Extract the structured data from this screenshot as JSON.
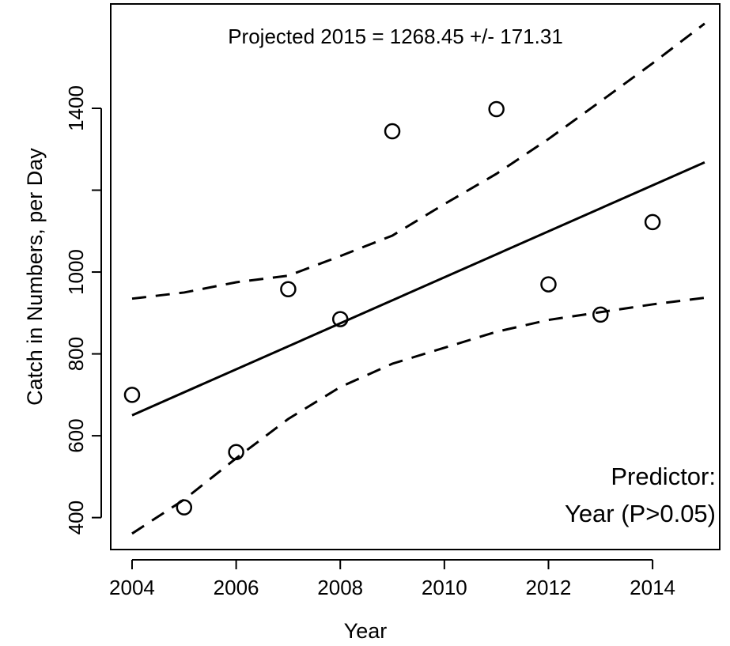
{
  "chart_data": {
    "type": "scatter",
    "annotation": "Projected 2015 =  1268.45 +/- 171.31",
    "note_lines": [
      "Predictor:",
      "Year (P>0.05)"
    ],
    "note_color": "#2e5f96",
    "xlabel": "Year",
    "ylabel": "Catch in Numbers, per Day",
    "xlim": [
      2003.59,
      2015.29
    ],
    "ylim": [
      322,
      1655
    ],
    "xticks": [
      2004,
      2006,
      2008,
      2010,
      2012,
      2014
    ],
    "yticks": [
      400,
      600,
      800,
      1000,
      1200,
      1400
    ],
    "ytick_labels_shown": [
      true,
      true,
      true,
      true,
      false,
      true
    ],
    "series": [
      {
        "style": "points",
        "color": "#000000",
        "x": [
          2004,
          2005,
          2006,
          2007,
          2008,
          2009,
          2011,
          2012,
          2013,
          2014
        ],
        "values": [
          700,
          425,
          560,
          958,
          885,
          1344,
          1398,
          970,
          896,
          1122
        ]
      },
      {
        "style": "solid",
        "color": "#000000",
        "x": [
          2004,
          2015
        ],
        "values": [
          650,
          1268
        ]
      },
      {
        "style": "dashed",
        "color": "#000000",
        "x": [
          2004,
          2005,
          2006,
          2007,
          2008,
          2009,
          2010,
          2011,
          2012,
          2013,
          2014,
          2015
        ],
        "values": [
          935,
          950,
          975,
          991,
          1039,
          1089,
          1166,
          1240,
          1325,
          1417,
          1510,
          1607
        ]
      },
      {
        "style": "dashed",
        "color": "#000000",
        "x": [
          2004,
          2005,
          2006,
          2007,
          2008,
          2009,
          2010,
          2011,
          2012,
          2013,
          2014,
          2015
        ],
        "values": [
          361,
          444,
          545,
          641,
          719,
          776,
          815,
          854,
          883,
          902,
          921,
          937
        ]
      }
    ]
  }
}
